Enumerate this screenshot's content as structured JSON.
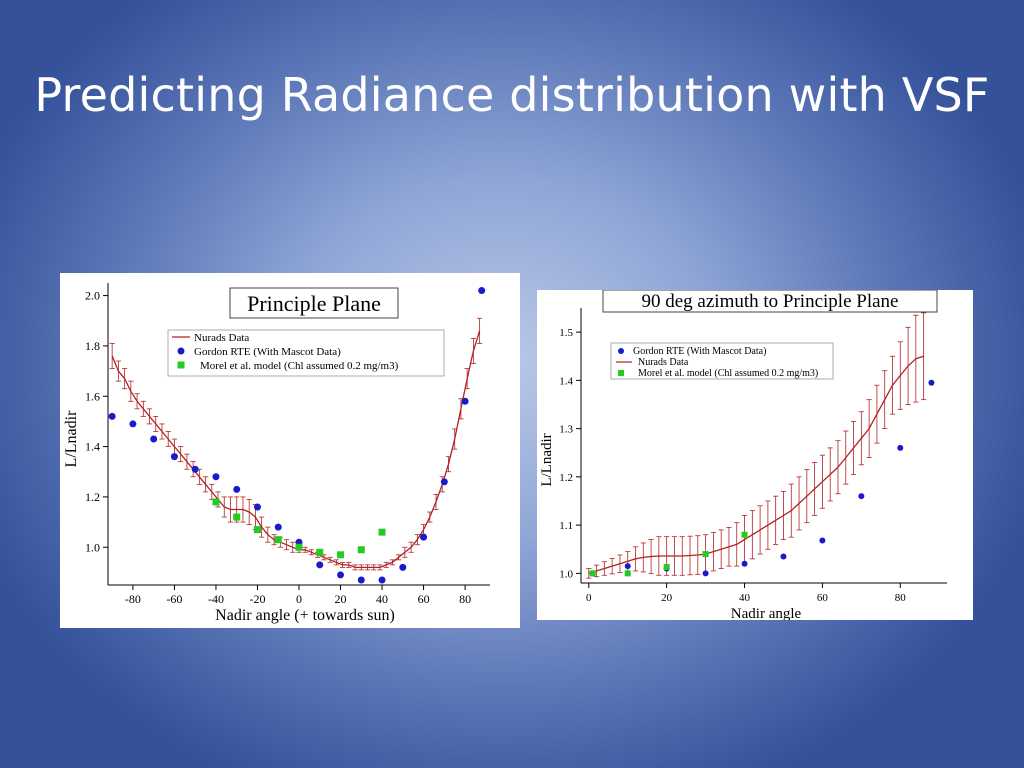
{
  "slide": {
    "title": "Predicting Radiance distribution with VSF"
  },
  "colors": {
    "nurads": "#b22222",
    "gordon": "#1a1acc",
    "morel": "#22cc22"
  },
  "chart_data": [
    {
      "type": "scatter",
      "title": "Principle Plane",
      "xlabel": "Nadir angle (+ towards sun)",
      "ylabel": "L/Lnadir",
      "xlim": [
        -92,
        92
      ],
      "ylim": [
        0.85,
        2.05
      ],
      "xticks": [
        -80,
        -60,
        -40,
        -20,
        0,
        20,
        40,
        60,
        80
      ],
      "yticks": [
        1.0,
        1.2,
        1.4,
        1.6,
        1.8,
        2.0
      ],
      "ytick_labels": [
        "1.0",
        "1.2",
        "1.4",
        "1.6",
        "1.8",
        "2.0"
      ],
      "legend_placement": "top-center",
      "series": [
        {
          "name": "Nurads Data",
          "kind": "line-errorbars",
          "x": [
            -90,
            -87,
            -84,
            -81,
            -78,
            -75,
            -72,
            -69,
            -66,
            -63,
            -60,
            -57,
            -54,
            -51,
            -48,
            -45,
            -42,
            -39,
            -36,
            -33,
            -30,
            -27,
            -24,
            -21,
            -18,
            -15,
            -12,
            -9,
            -6,
            -3,
            0,
            3,
            6,
            9,
            12,
            15,
            18,
            21,
            24,
            27,
            30,
            33,
            36,
            39,
            42,
            45,
            48,
            51,
            54,
            57,
            60,
            63,
            66,
            69,
            72,
            75,
            78,
            81,
            84,
            87
          ],
          "y": [
            1.76,
            1.7,
            1.67,
            1.62,
            1.58,
            1.55,
            1.52,
            1.49,
            1.46,
            1.43,
            1.4,
            1.37,
            1.34,
            1.31,
            1.28,
            1.25,
            1.22,
            1.19,
            1.16,
            1.15,
            1.15,
            1.15,
            1.14,
            1.12,
            1.08,
            1.05,
            1.03,
            1.02,
            1.01,
            1.0,
            0.99,
            0.99,
            0.98,
            0.97,
            0.96,
            0.95,
            0.94,
            0.93,
            0.93,
            0.92,
            0.92,
            0.92,
            0.92,
            0.92,
            0.93,
            0.94,
            0.96,
            0.98,
            1.0,
            1.03,
            1.07,
            1.12,
            1.18,
            1.25,
            1.33,
            1.43,
            1.55,
            1.67,
            1.78,
            1.86
          ],
          "err": [
            0.05,
            0.04,
            0.04,
            0.04,
            0.03,
            0.03,
            0.03,
            0.03,
            0.03,
            0.03,
            0.03,
            0.03,
            0.03,
            0.03,
            0.03,
            0.03,
            0.03,
            0.03,
            0.04,
            0.05,
            0.05,
            0.05,
            0.05,
            0.05,
            0.04,
            0.03,
            0.02,
            0.02,
            0.02,
            0.02,
            0.01,
            0.01,
            0.01,
            0.01,
            0.01,
            0.01,
            0.01,
            0.01,
            0.01,
            0.01,
            0.01,
            0.01,
            0.01,
            0.01,
            0.01,
            0.01,
            0.01,
            0.02,
            0.02,
            0.02,
            0.02,
            0.02,
            0.03,
            0.03,
            0.03,
            0.04,
            0.04,
            0.04,
            0.05,
            0.05
          ]
        },
        {
          "name": "Gordon RTE (With Mascot Data)",
          "kind": "circle",
          "x": [
            -90,
            -80,
            -70,
            -60,
            -50,
            -40,
            -30,
            -20,
            -10,
            0,
            10,
            20,
            30,
            40,
            50,
            60,
            70,
            80,
            88
          ],
          "y": [
            1.52,
            1.49,
            1.43,
            1.36,
            1.31,
            1.28,
            1.23,
            1.16,
            1.08,
            1.02,
            0.93,
            0.89,
            0.87,
            0.87,
            0.92,
            1.04,
            1.26,
            1.58,
            2.02
          ]
        },
        {
          "name": "Morel et al. model (Chl assumed 0.2 mg/m3)",
          "kind": "square",
          "x": [
            -40,
            -30,
            -20,
            -10,
            0,
            10,
            20,
            30,
            40
          ],
          "y": [
            1.18,
            1.12,
            1.07,
            1.03,
            1.0,
            0.98,
            0.97,
            0.99,
            1.06
          ]
        }
      ]
    },
    {
      "type": "scatter",
      "title": "90 deg azimuth to Principle Plane",
      "xlabel": "Nadir angle",
      "ylabel": "L/Lnadir",
      "xlim": [
        -2,
        92
      ],
      "ylim": [
        0.98,
        1.55
      ],
      "xticks": [
        0,
        20,
        40,
        60,
        80
      ],
      "yticks": [
        1.0,
        1.1,
        1.2,
        1.3,
        1.4,
        1.5
      ],
      "ytick_labels": [
        "1.0",
        "1.1",
        "1.2",
        "1.3",
        "1.4",
        "1.5"
      ],
      "legend_placement": "top-left",
      "series": [
        {
          "name": "Gordon RTE (With Mascot Data)",
          "kind": "circle",
          "x": [
            1,
            10,
            20,
            30,
            40,
            50,
            60,
            70,
            80,
            88
          ],
          "y": [
            1.0,
            1.015,
            1.01,
            1.0,
            1.02,
            1.035,
            1.068,
            1.16,
            1.26,
            1.395
          ]
        },
        {
          "name": "Nurads Data",
          "kind": "line-errorbars",
          "x": [
            0,
            2,
            4,
            6,
            8,
            10,
            12,
            14,
            16,
            18,
            20,
            22,
            24,
            26,
            28,
            30,
            32,
            34,
            36,
            38,
            40,
            42,
            44,
            46,
            48,
            50,
            52,
            54,
            56,
            58,
            60,
            62,
            64,
            66,
            68,
            70,
            72,
            74,
            76,
            78,
            80,
            82,
            84,
            86
          ],
          "y": [
            1.0,
            1.005,
            1.01,
            1.015,
            1.02,
            1.025,
            1.03,
            1.033,
            1.035,
            1.036,
            1.036,
            1.036,
            1.036,
            1.037,
            1.038,
            1.04,
            1.045,
            1.05,
            1.055,
            1.06,
            1.07,
            1.08,
            1.09,
            1.1,
            1.11,
            1.12,
            1.13,
            1.145,
            1.16,
            1.175,
            1.19,
            1.205,
            1.22,
            1.24,
            1.26,
            1.28,
            1.3,
            1.33,
            1.36,
            1.39,
            1.41,
            1.43,
            1.445,
            1.45
          ],
          "err": [
            0.01,
            0.012,
            0.014,
            0.016,
            0.018,
            0.02,
            0.025,
            0.03,
            0.035,
            0.04,
            0.04,
            0.04,
            0.04,
            0.04,
            0.04,
            0.04,
            0.04,
            0.04,
            0.04,
            0.045,
            0.05,
            0.05,
            0.05,
            0.05,
            0.05,
            0.05,
            0.055,
            0.055,
            0.055,
            0.055,
            0.055,
            0.055,
            0.055,
            0.055,
            0.055,
            0.055,
            0.06,
            0.06,
            0.06,
            0.06,
            0.07,
            0.08,
            0.09,
            0.09
          ]
        },
        {
          "name": "Morel et al. model (Chl assumed 0.2 mg/m3)",
          "kind": "square",
          "x": [
            1,
            10,
            20,
            30,
            40
          ],
          "y": [
            1.0,
            1.0,
            1.013,
            1.04,
            1.08
          ]
        }
      ]
    }
  ]
}
